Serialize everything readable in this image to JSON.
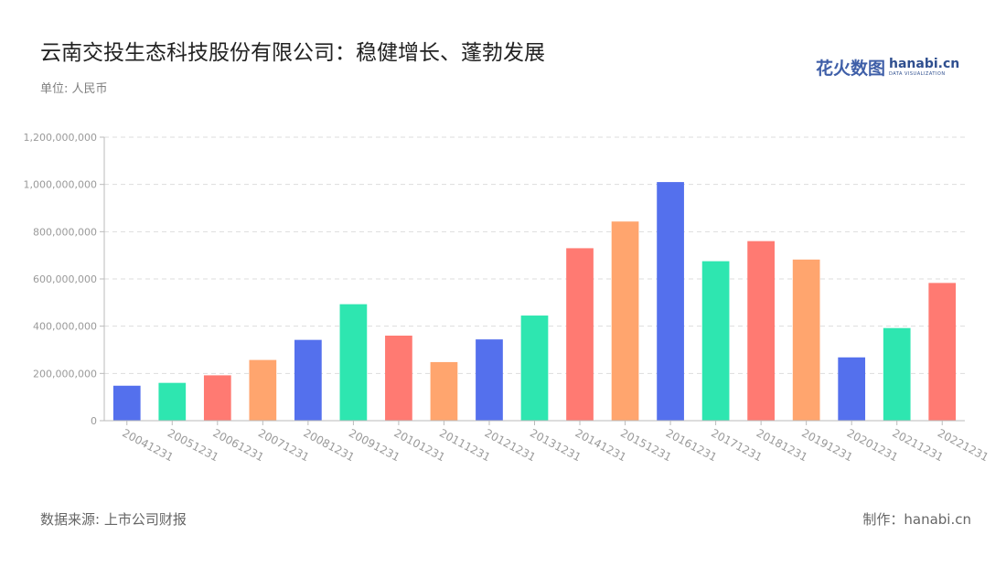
{
  "header": {
    "title": "云南交投生态科技股份有限公司：稳健增长、蓬勃发展",
    "unit": "单位: 人民币"
  },
  "logo": {
    "cn": "花火数图",
    "en": "hanabi.cn",
    "tagline": "DATA VISUALIZATION",
    "colors": {
      "text": "#2f4f8f"
    }
  },
  "footer": {
    "source": "数据来源: 上市公司财报",
    "credit": "制作：hanabi.cn"
  },
  "chart_data": {
    "type": "bar",
    "categories": [
      "20041231",
      "20051231",
      "20061231",
      "20071231",
      "20081231",
      "20091231",
      "20101231",
      "20111231",
      "20121231",
      "20131231",
      "20141231",
      "20151231",
      "20161231",
      "20171231",
      "20181231",
      "20191231",
      "20201231",
      "20211231",
      "20221231"
    ],
    "values": [
      148000000,
      160000000,
      192000000,
      257000000,
      342000000,
      493000000,
      360000000,
      248000000,
      344000000,
      445000000,
      730000000,
      843000000,
      1010000000,
      675000000,
      760000000,
      682000000,
      268000000,
      392000000,
      583000000
    ],
    "colors": [
      "#5470ed",
      "#2ee6b0",
      "#ff7a72",
      "#ffa56e",
      "#5470ed",
      "#2ee6b0",
      "#ff7a72",
      "#ffa56e",
      "#5470ed",
      "#2ee6b0",
      "#ff7a72",
      "#ffa56e",
      "#5470ed",
      "#2ee6b0",
      "#ff7a72",
      "#ffa56e",
      "#5470ed",
      "#2ee6b0",
      "#ff7a72"
    ],
    "yticks": [
      "0",
      "200,000,000",
      "400,000,000",
      "600,000,000",
      "800,000,000",
      "1,000,000,000",
      "1,200,000,000"
    ],
    "ylim": [
      0,
      1200000000
    ],
    "grid": true,
    "gridColor": "#dddddd",
    "axisColor": "#bbbbbb",
    "tickLabelColor": "#9a9a9a",
    "xlabel": "",
    "ylabel": ""
  }
}
